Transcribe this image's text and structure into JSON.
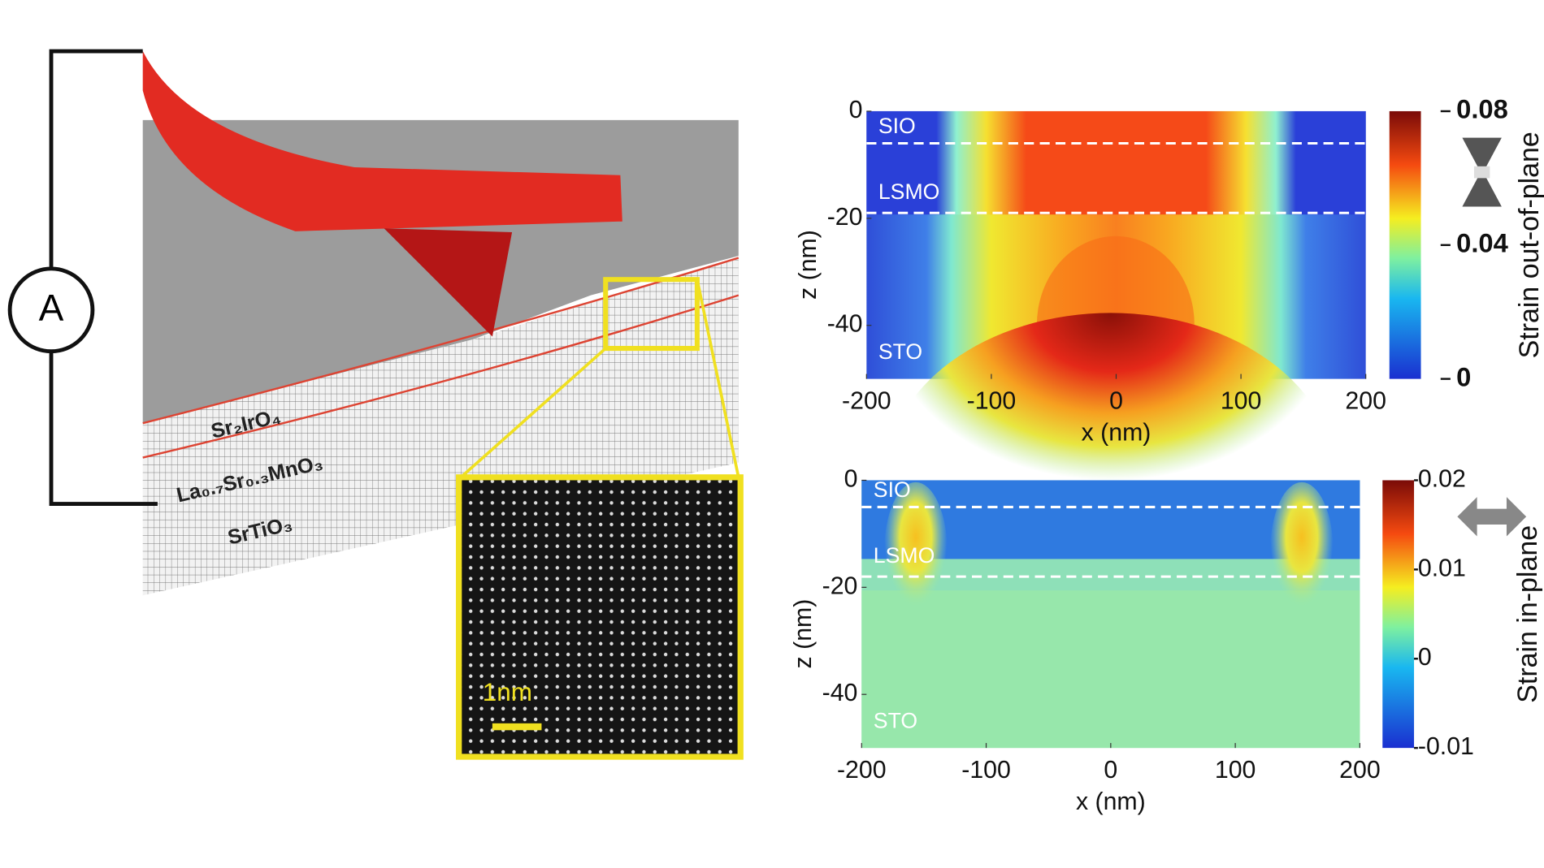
{
  "schematic": {
    "meter": "A",
    "layers": [
      "Sr₂IrO₄",
      "La₀.₇Sr₀.₃MnO₃",
      "SrTiO₃"
    ],
    "scale_bar": "1nm"
  },
  "panels": [
    {
      "xlabel": "x (nm)",
      "ylabel": "z (nm)",
      "xlim": [
        -200,
        200
      ],
      "xticks": [
        -200,
        -100,
        0,
        100,
        200
      ],
      "ylim": [
        -50,
        0
      ],
      "yticks": [
        0,
        -20,
        -40
      ],
      "layer_labels": [
        "SIO",
        "LSMO",
        "STO"
      ],
      "interfaces": [
        -6,
        -19
      ],
      "colorbar": {
        "label": "Strain out-of-plane",
        "lim": [
          0,
          0.08
        ],
        "ticks": [
          0.08,
          0.04,
          0
        ]
      }
    },
    {
      "xlabel": "x (nm)",
      "ylabel": "z (nm)",
      "xlim": [
        -200,
        200
      ],
      "xticks": [
        -200,
        -100,
        0,
        100,
        200
      ],
      "ylim": [
        -50,
        0
      ],
      "yticks": [
        0,
        -20,
        -40
      ],
      "layer_labels": [
        "SIO",
        "LSMO",
        "STO"
      ],
      "interfaces": [
        -5,
        -18
      ],
      "colorbar": {
        "label": "Strain in-plane",
        "lim": [
          -0.01,
          0.02
        ],
        "ticks": [
          0.02,
          0.01,
          0,
          -0.01
        ]
      }
    }
  ]
}
